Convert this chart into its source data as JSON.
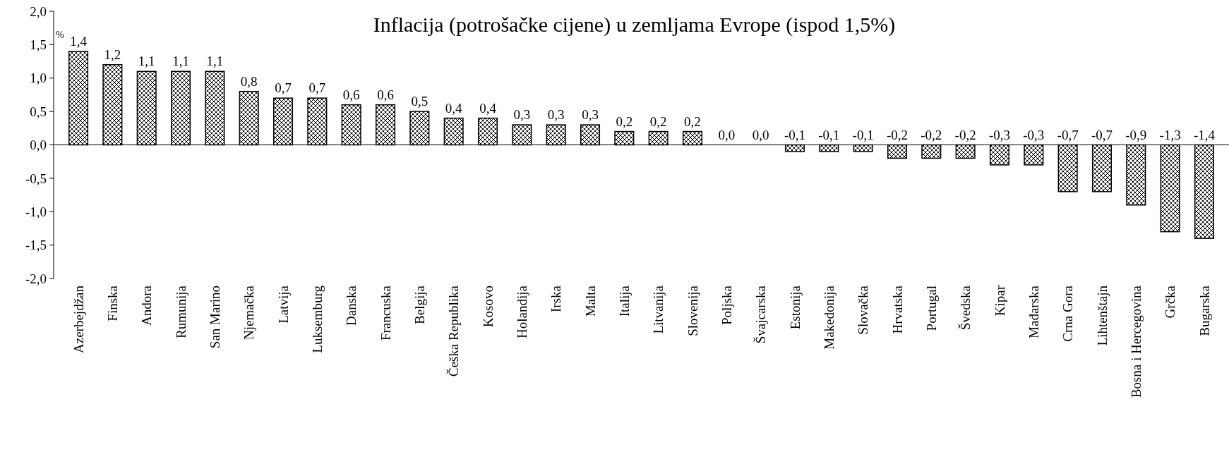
{
  "chart_data": {
    "type": "bar",
    "title": "Inflacija (potrošačke cijene) u zemljama Evrope (ispod 1,5%)",
    "ylabel": "%",
    "categories": [
      "Azerbejdžan",
      "Finska",
      "Andora",
      "Rumunija",
      "San Marino",
      "Njemačka",
      "Latvija",
      "Luksemburg",
      "Danska",
      "Francuska",
      "Belgija",
      "Češka Republika",
      "Kosovo",
      "Holandija",
      "Irska",
      "Malta",
      "Italija",
      "Litvanija",
      "Slovenija",
      "Poljska",
      "Švajcarska",
      "Estonija",
      "Makedonija",
      "Slovačka",
      "Hrvatska",
      "Portugal",
      "Švedska",
      "Kipar",
      "Mađarska",
      "Crna Gora",
      "Lihtenštajn",
      "Bosna i Hercegovina",
      "Grčka",
      "Bugarska"
    ],
    "values": [
      1.4,
      1.2,
      1.1,
      1.1,
      1.1,
      0.8,
      0.7,
      0.7,
      0.6,
      0.6,
      0.5,
      0.4,
      0.4,
      0.3,
      0.3,
      0.3,
      0.2,
      0.2,
      0.2,
      0.0,
      0.0,
      -0.1,
      -0.1,
      -0.1,
      -0.2,
      -0.2,
      -0.2,
      -0.3,
      -0.3,
      -0.7,
      -0.7,
      -0.9,
      -1.3,
      -1.4
    ],
    "value_labels": [
      "1,4",
      "1,2",
      "1,1",
      "1,1",
      "1,1",
      "0,8",
      "0,7",
      "0,7",
      "0,6",
      "0,6",
      "0,5",
      "0,4",
      "0,4",
      "0,3",
      "0,3",
      "0,3",
      "0,2",
      "0,2",
      "0,2",
      "0,0",
      "0,0",
      "-0,1",
      "-0,1",
      "-0,1",
      "-0,2",
      "-0,2",
      "-0,2",
      "-0,3",
      "-0,3",
      "-0,7",
      "-0,7",
      "-0,9",
      "-1,3",
      "-1,4"
    ],
    "color": "#000000",
    "ylim": [
      -2,
      2
    ],
    "yticks": [
      {
        "value": -2,
        "label": "-2,0"
      },
      {
        "value": -1.5,
        "label": "-1,5"
      },
      {
        "value": -1,
        "label": "-1,0"
      },
      {
        "value": -0.5,
        "label": "-0,5"
      },
      {
        "value": 0,
        "label": "0,0"
      },
      {
        "value": 0.5,
        "label": "0,5"
      },
      {
        "value": 1,
        "label": "1,0"
      },
      {
        "value": 1.5,
        "label": "1,5"
      },
      {
        "value": 2,
        "label": "2,0"
      }
    ],
    "line_style": "solid"
  }
}
